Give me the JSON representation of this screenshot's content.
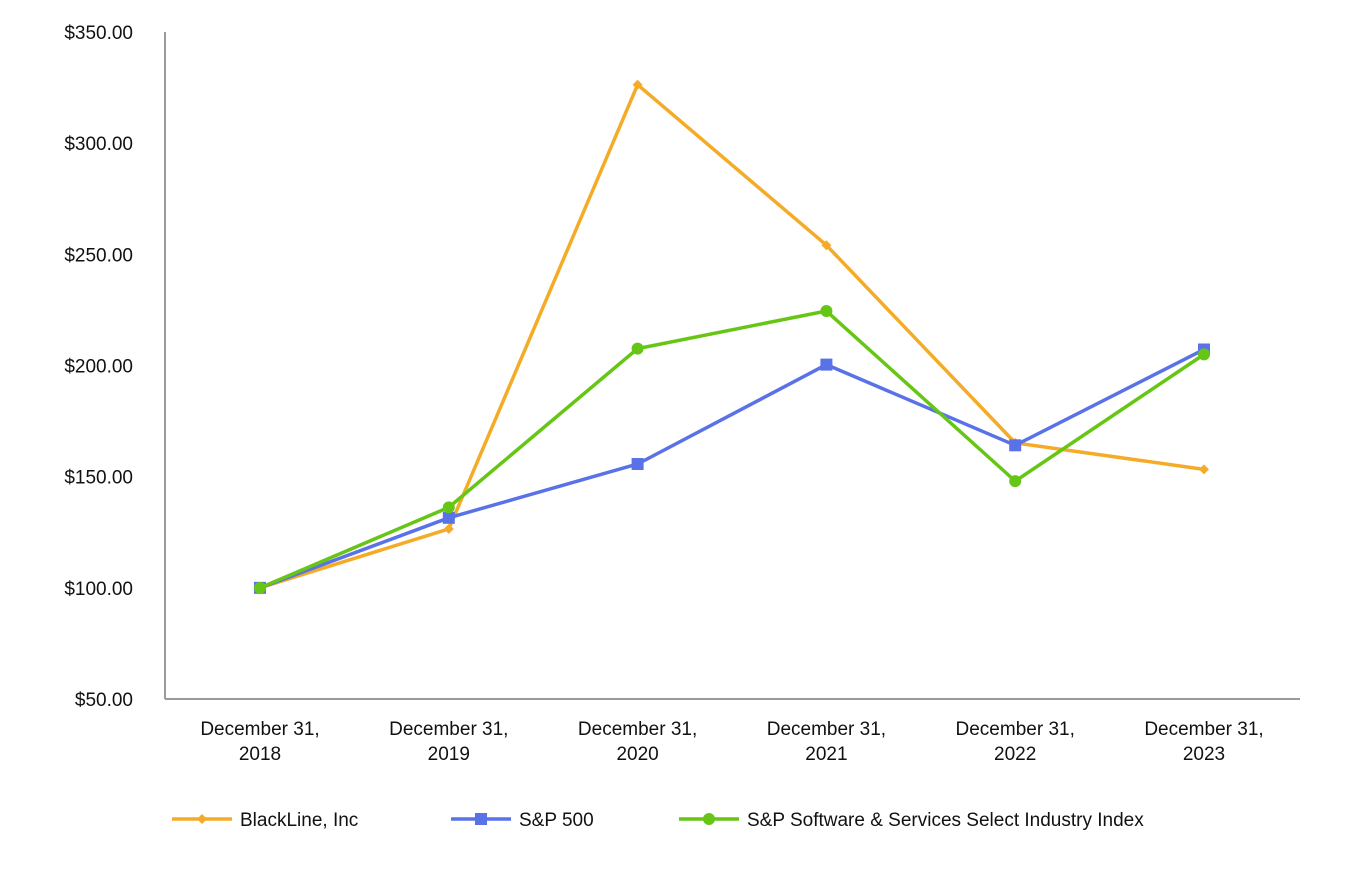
{
  "chart_data": {
    "type": "line",
    "title": "",
    "xlabel": "",
    "ylabel": "",
    "categories": [
      [
        "December 31,",
        "2018"
      ],
      [
        "December 31,",
        "2019"
      ],
      [
        "December 31,",
        "2020"
      ],
      [
        "December 31,",
        "2021"
      ],
      [
        "December 31,",
        "2022"
      ],
      [
        "December 31,",
        "2023"
      ]
    ],
    "ylim": [
      50,
      350
    ],
    "yticks": [
      350,
      300,
      250,
      200,
      150,
      100,
      50
    ],
    "ytick_labels": [
      "$350.00",
      "$300.00",
      "$250.00",
      "$200.00",
      "$150.00",
      "$100.00",
      "$50.00"
    ],
    "grid": false,
    "legend_position": "bottom",
    "series": [
      {
        "name": "BlackLine, Inc",
        "color": "#F4AC28",
        "marker": "diamond",
        "values": [
          100.0,
          126.5,
          326.3,
          254.1,
          165.2,
          153.3
        ]
      },
      {
        "name": "S&P 500",
        "color": "#5A72E8",
        "marker": "square",
        "values": [
          100.0,
          131.5,
          155.7,
          200.4,
          164.1,
          207.2
        ]
      },
      {
        "name": "S&P Software & Services Select Industry Index",
        "color": "#66C616",
        "marker": "circle",
        "values": [
          100.0,
          136.2,
          207.6,
          224.5,
          148.0,
          205.0
        ]
      }
    ]
  }
}
